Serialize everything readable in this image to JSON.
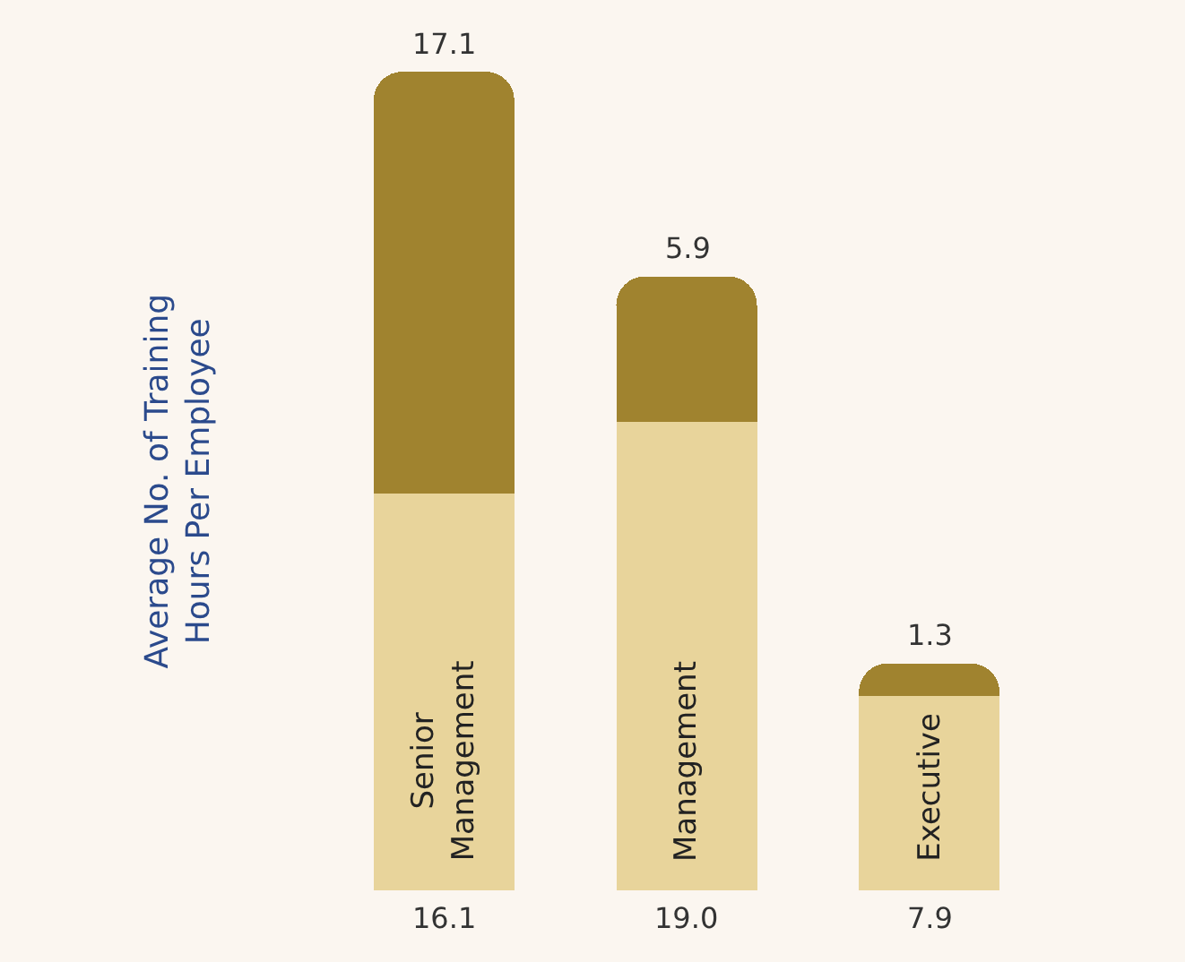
{
  "chart_data": {
    "type": "bar",
    "stacked": true,
    "ylabel": "Average No. of Training Hours Per Employee",
    "categories": [
      "Senior Management",
      "Management",
      "Executive"
    ],
    "series": [
      {
        "color": "#e8d49b",
        "values": [
          16.1,
          19.0,
          7.9
        ],
        "value_labels": [
          "16.1",
          "19.0",
          "7.9"
        ]
      },
      {
        "color": "#a0832f",
        "values": [
          17.1,
          5.9,
          1.3
        ],
        "value_labels": [
          "17.1",
          "5.9",
          "1.3"
        ]
      }
    ]
  }
}
